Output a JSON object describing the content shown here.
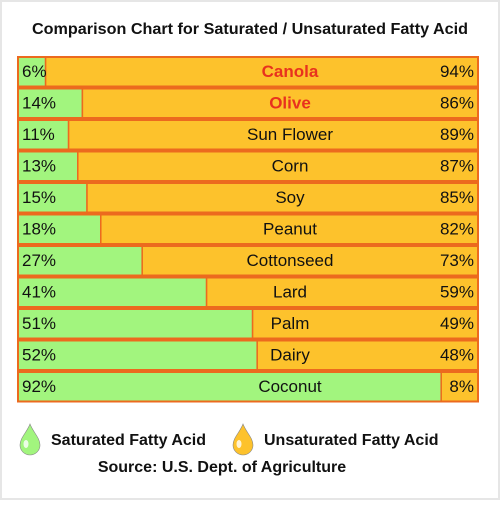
{
  "chart_data": {
    "type": "bar",
    "orientation": "horizontal",
    "stacked": true,
    "title": "Comparison Chart for Saturated / Unsaturated Fatty Acid",
    "categories": [
      "Canola",
      "Olive",
      "Sun Flower",
      "Corn",
      "Soy",
      "Peanut",
      "Cottonseed",
      "Lard",
      "Palm",
      "Dairy",
      "Coconut"
    ],
    "category_colors": [
      "#e8321e",
      "#e8321e",
      "#111111",
      "#111111",
      "#111111",
      "#111111",
      "#111111",
      "#111111",
      "#111111",
      "#111111",
      "#111111"
    ],
    "series": [
      {
        "name": "Saturated Fatty Acid",
        "color": "#a2f57e",
        "values": [
          6,
          14,
          11,
          13,
          15,
          18,
          27,
          41,
          51,
          52,
          92
        ],
        "value_labels": [
          "6%",
          "14%",
          "11%",
          "13%",
          "15%",
          "18%",
          "27%",
          "41%",
          "51%",
          "52%",
          "92%"
        ]
      },
      {
        "name": "Unsaturated Fatty Acid",
        "color": "#fdc22c",
        "values": [
          94,
          86,
          89,
          87,
          85,
          82,
          73,
          59,
          49,
          48,
          8
        ],
        "value_labels": [
          "94%",
          "86%",
          "89%",
          "87%",
          "85%",
          "82%",
          "73%",
          "59%",
          "49%",
          "48%",
          "8%"
        ]
      }
    ],
    "border_color": "#ec6a1e",
    "note": "Source: U.S. Dept. of Agriculture"
  }
}
